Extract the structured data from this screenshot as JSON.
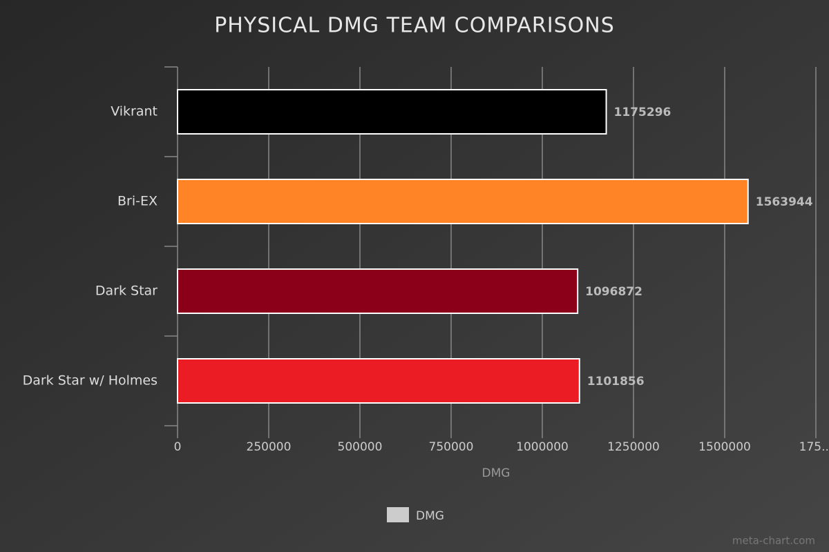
{
  "chart_data": {
    "type": "hbar",
    "title": "PHYSICAL DMG TEAM COMPARISONS",
    "categories": [
      "Vikrant",
      "Bri-EX",
      "Dark Star",
      "Dark Star w/ Holmes"
    ],
    "series": [
      {
        "name": "DMG",
        "color": "#cccccc",
        "values": [
          1175296,
          1563944,
          1096872,
          1101856
        ]
      }
    ],
    "bar_colors": [
      "#000000",
      "#ff8426",
      "#8b0018",
      "#ec1c24"
    ],
    "xlim": [
      0,
      1750000
    ],
    "xticks": [
      0,
      250000,
      500000,
      750000,
      1000000,
      1250000,
      1500000,
      {
        "value": 1750000,
        "label": "175..."
      }
    ],
    "xlabel": "DMG",
    "grid": true,
    "legend": "bottom",
    "watermark": "meta-chart.com"
  }
}
